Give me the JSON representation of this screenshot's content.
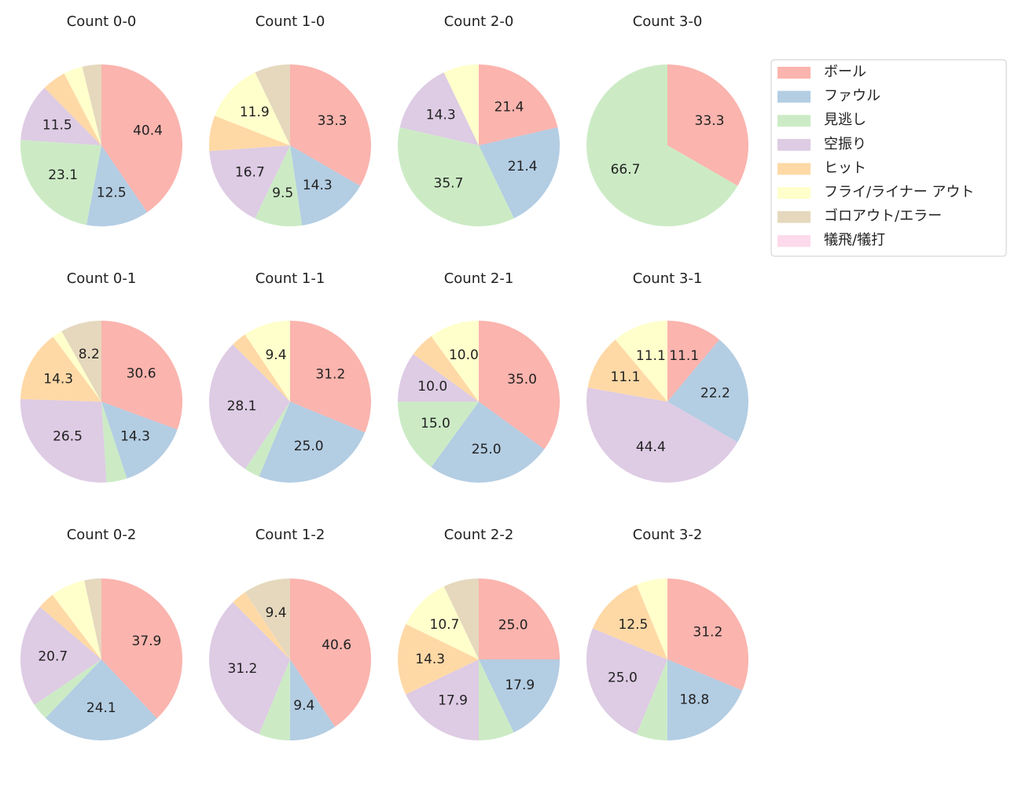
{
  "chart_data": [
    {
      "type": "pie",
      "title": "Count 0-0",
      "categories": [
        "ボール",
        "ファウル",
        "見逃し",
        "空振り",
        "ヒット",
        "フライ/ライナー アウト",
        "ゴロアウト/エラー",
        "犠飛/犠打"
      ],
      "colors": [
        "#fbb4ae",
        "#b3cde3",
        "#ccebc5",
        "#decbe4",
        "#fed9a6",
        "#ffffcc",
        "#e5d8bd",
        "#fddaec"
      ],
      "values": [
        40.4,
        12.5,
        23.1,
        11.5,
        4.8,
        3.8,
        3.8,
        0
      ],
      "value_labels": [
        "40.4",
        "12.5",
        "23.1",
        "11.5",
        null,
        null,
        null,
        null
      ]
    },
    {
      "type": "pie",
      "title": "Count 1-0",
      "categories": [
        "ボール",
        "ファウル",
        "見逃し",
        "空振り",
        "ヒット",
        "フライ/ライナー アウト",
        "ゴロアウト/エラー",
        "犠飛/犠打"
      ],
      "colors": [
        "#fbb4ae",
        "#b3cde3",
        "#ccebc5",
        "#decbe4",
        "#fed9a6",
        "#ffffcc",
        "#e5d8bd",
        "#fddaec"
      ],
      "values": [
        33.3,
        14.3,
        9.5,
        16.7,
        7.1,
        11.9,
        7.1,
        0
      ],
      "value_labels": [
        "33.3",
        "14.3",
        "9.5",
        "16.7",
        null,
        "11.9",
        null,
        null
      ]
    },
    {
      "type": "pie",
      "title": "Count 2-0",
      "categories": [
        "ボール",
        "ファウル",
        "見逃し",
        "空振り",
        "ヒット",
        "フライ/ライナー アウト",
        "ゴロアウト/エラー",
        "犠飛/犠打"
      ],
      "colors": [
        "#fbb4ae",
        "#b3cde3",
        "#ccebc5",
        "#decbe4",
        "#fed9a6",
        "#ffffcc",
        "#e5d8bd",
        "#fddaec"
      ],
      "values": [
        21.4,
        21.4,
        35.7,
        14.3,
        0,
        7.1,
        0,
        0
      ],
      "value_labels": [
        "21.4",
        "21.4",
        "35.7",
        "14.3",
        null,
        null,
        null,
        null
      ]
    },
    {
      "type": "pie",
      "title": "Count 3-0",
      "categories": [
        "ボール",
        "ファウル",
        "見逃し",
        "空振り",
        "ヒット",
        "フライ/ライナー アウト",
        "ゴロアウト/エラー",
        "犠飛/犠打"
      ],
      "colors": [
        "#fbb4ae",
        "#b3cde3",
        "#ccebc5",
        "#decbe4",
        "#fed9a6",
        "#ffffcc",
        "#e5d8bd",
        "#fddaec"
      ],
      "values": [
        33.3,
        0,
        66.7,
        0,
        0,
        0,
        0,
        0
      ],
      "value_labels": [
        "33.3",
        null,
        "66.7",
        null,
        null,
        null,
        null,
        null
      ]
    },
    {
      "type": "pie",
      "title": "Count 0-1",
      "categories": [
        "ボール",
        "ファウル",
        "見逃し",
        "空振り",
        "ヒット",
        "フライ/ライナー アウト",
        "ゴロアウト/エラー",
        "犠飛/犠打"
      ],
      "colors": [
        "#fbb4ae",
        "#b3cde3",
        "#ccebc5",
        "#decbe4",
        "#fed9a6",
        "#ffffcc",
        "#e5d8bd",
        "#fddaec"
      ],
      "values": [
        30.6,
        14.3,
        4.1,
        26.5,
        14.3,
        2.0,
        8.2,
        0
      ],
      "value_labels": [
        "30.6",
        "14.3",
        null,
        "26.5",
        "14.3",
        null,
        "8.2",
        null
      ]
    },
    {
      "type": "pie",
      "title": "Count 1-1",
      "categories": [
        "ボール",
        "ファウル",
        "見逃し",
        "空振り",
        "ヒット",
        "フライ/ライナー アウト",
        "ゴロアウト/エラー",
        "犠飛/犠打"
      ],
      "colors": [
        "#fbb4ae",
        "#b3cde3",
        "#ccebc5",
        "#decbe4",
        "#fed9a6",
        "#ffffcc",
        "#e5d8bd",
        "#fddaec"
      ],
      "values": [
        31.2,
        25.0,
        3.1,
        28.1,
        3.1,
        9.4,
        0,
        0
      ],
      "value_labels": [
        "31.2",
        "25.0",
        null,
        "28.1",
        null,
        "9.4",
        null,
        null
      ]
    },
    {
      "type": "pie",
      "title": "Count 2-1",
      "categories": [
        "ボール",
        "ファウル",
        "見逃し",
        "空振り",
        "ヒット",
        "フライ/ライナー アウト",
        "ゴロアウト/エラー",
        "犠飛/犠打"
      ],
      "colors": [
        "#fbb4ae",
        "#b3cde3",
        "#ccebc5",
        "#decbe4",
        "#fed9a6",
        "#ffffcc",
        "#e5d8bd",
        "#fddaec"
      ],
      "values": [
        35.0,
        25.0,
        15.0,
        10.0,
        5.0,
        10.0,
        0,
        0
      ],
      "value_labels": [
        "35.0",
        "25.0",
        "15.0",
        "10.0",
        null,
        "10.0",
        null,
        null
      ]
    },
    {
      "type": "pie",
      "title": "Count 3-1",
      "categories": [
        "ボール",
        "ファウル",
        "見逃し",
        "空振り",
        "ヒット",
        "フライ/ライナー アウト",
        "ゴロアウト/エラー",
        "犠飛/犠打"
      ],
      "colors": [
        "#fbb4ae",
        "#b3cde3",
        "#ccebc5",
        "#decbe4",
        "#fed9a6",
        "#ffffcc",
        "#e5d8bd",
        "#fddaec"
      ],
      "values": [
        11.1,
        22.2,
        0,
        44.4,
        11.1,
        11.1,
        0,
        0
      ],
      "value_labels": [
        "11.1",
        "22.2",
        null,
        "44.4",
        "11.1",
        "11.1",
        null,
        null
      ]
    },
    {
      "type": "pie",
      "title": "Count 0-2",
      "categories": [
        "ボール",
        "ファウル",
        "見逃し",
        "空振り",
        "ヒット",
        "フライ/ライナー アウト",
        "ゴロアウト/エラー",
        "犠飛/犠打"
      ],
      "colors": [
        "#fbb4ae",
        "#b3cde3",
        "#ccebc5",
        "#decbe4",
        "#fed9a6",
        "#ffffcc",
        "#e5d8bd",
        "#fddaec"
      ],
      "values": [
        37.9,
        24.1,
        3.4,
        20.7,
        3.4,
        6.9,
        3.4,
        0
      ],
      "value_labels": [
        "37.9",
        "24.1",
        null,
        "20.7",
        null,
        null,
        null,
        null
      ]
    },
    {
      "type": "pie",
      "title": "Count 1-2",
      "categories": [
        "ボール",
        "ファウル",
        "見逃し",
        "空振り",
        "ヒット",
        "フライ/ライナー アウト",
        "ゴロアウト/エラー",
        "犠飛/犠打"
      ],
      "colors": [
        "#fbb4ae",
        "#b3cde3",
        "#ccebc5",
        "#decbe4",
        "#fed9a6",
        "#ffffcc",
        "#e5d8bd",
        "#fddaec"
      ],
      "values": [
        40.6,
        9.4,
        6.2,
        31.2,
        3.1,
        0,
        9.4,
        0
      ],
      "value_labels": [
        "40.6",
        "9.4",
        null,
        "31.2",
        null,
        null,
        "9.4",
        null
      ]
    },
    {
      "type": "pie",
      "title": "Count 2-2",
      "categories": [
        "ボール",
        "ファウル",
        "見逃し",
        "空振り",
        "ヒット",
        "フライ/ライナー アウト",
        "ゴロアウト/エラー",
        "犠飛/犠打"
      ],
      "colors": [
        "#fbb4ae",
        "#b3cde3",
        "#ccebc5",
        "#decbe4",
        "#fed9a6",
        "#ffffcc",
        "#e5d8bd",
        "#fddaec"
      ],
      "values": [
        25.0,
        17.9,
        7.1,
        17.9,
        14.3,
        10.7,
        7.1,
        0
      ],
      "value_labels": [
        "25.0",
        "17.9",
        null,
        "17.9",
        "14.3",
        "10.7",
        null,
        null
      ]
    },
    {
      "type": "pie",
      "title": "Count 3-2",
      "categories": [
        "ボール",
        "ファウル",
        "見逃し",
        "空振り",
        "ヒット",
        "フライ/ライナー アウト",
        "ゴロアウト/エラー",
        "犠飛/犠打"
      ],
      "colors": [
        "#fbb4ae",
        "#b3cde3",
        "#ccebc5",
        "#decbe4",
        "#fed9a6",
        "#ffffcc",
        "#e5d8bd",
        "#fddaec"
      ],
      "values": [
        31.2,
        18.8,
        6.2,
        25.0,
        12.5,
        6.2,
        0,
        0
      ],
      "value_labels": [
        "31.2",
        "18.8",
        null,
        "25.0",
        "12.5",
        null,
        null,
        null
      ]
    }
  ]
}
